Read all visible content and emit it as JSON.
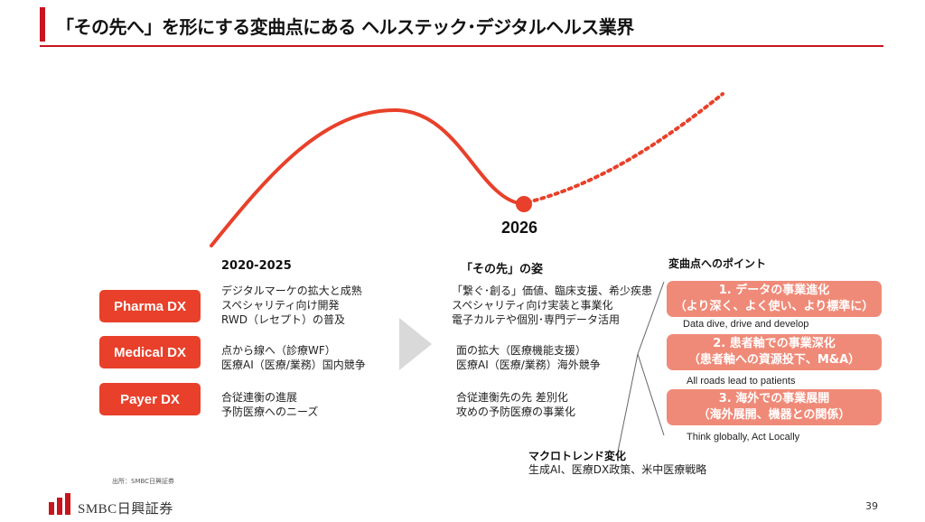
{
  "title": "「その先へ」を形にする変曲点にある ヘルステック･デジタルヘルス業界",
  "year": "2026",
  "categories": [
    {
      "label": "Pharma DX"
    },
    {
      "label": "Medical DX"
    },
    {
      "label": "Payer DX"
    }
  ],
  "period_header": "2020-2025",
  "period_items": [
    [
      "デジタルマーケの拡大と成熟",
      "スペシャリティ向け開発",
      "RWD（レセプト）の普及"
    ],
    [
      "点から線へ（診療WF）",
      "医療AI（医療/業務）国内競争"
    ],
    [
      "合従連衡の進展",
      "予防医療へのニーズ"
    ]
  ],
  "future_header": "「その先」の姿",
  "future_items": [
    [
      "「繋ぐ･創る」価値、臨床支援、希少疾患",
      "スペシャリティ向け実装と事業化",
      "電子カルテや個別･専門データ活用"
    ],
    [
      "面の拡大（医療機能支援）",
      "医療AI（医療/業務）海外競争"
    ],
    [
      "合従連衡先の先 差別化",
      "攻めの予防医療の事業化"
    ]
  ],
  "points_header": "変曲点へのポイント",
  "points": [
    {
      "line1": "1. データの事業進化",
      "line2": "（より深く、よく使い、より標準に）",
      "sub": "Data dive, drive and develop"
    },
    {
      "line1": "2. 患者軸での事業深化",
      "line2": "（患者軸への資源投下、M&A）",
      "sub": "All roads lead to patients"
    },
    {
      "line1": "3. 海外での事業展開",
      "line2": "（海外展開、機器との関係）",
      "sub": "Think globally, Act Locally"
    }
  ],
  "macro_title": "マクロトレンド変化",
  "macro_text": "生成AI、医療DX政策、米中医療戦略",
  "source": "出所：SMBC日興証券",
  "logo_text": "SMBC日興証券",
  "page_number": "39",
  "colors": {
    "accent_red": "#c8141e",
    "pill_red": "#e8402a",
    "point_salmon": "#f08a78",
    "curve": "#e8402a",
    "arrow_gray": "#d9d9d9"
  }
}
